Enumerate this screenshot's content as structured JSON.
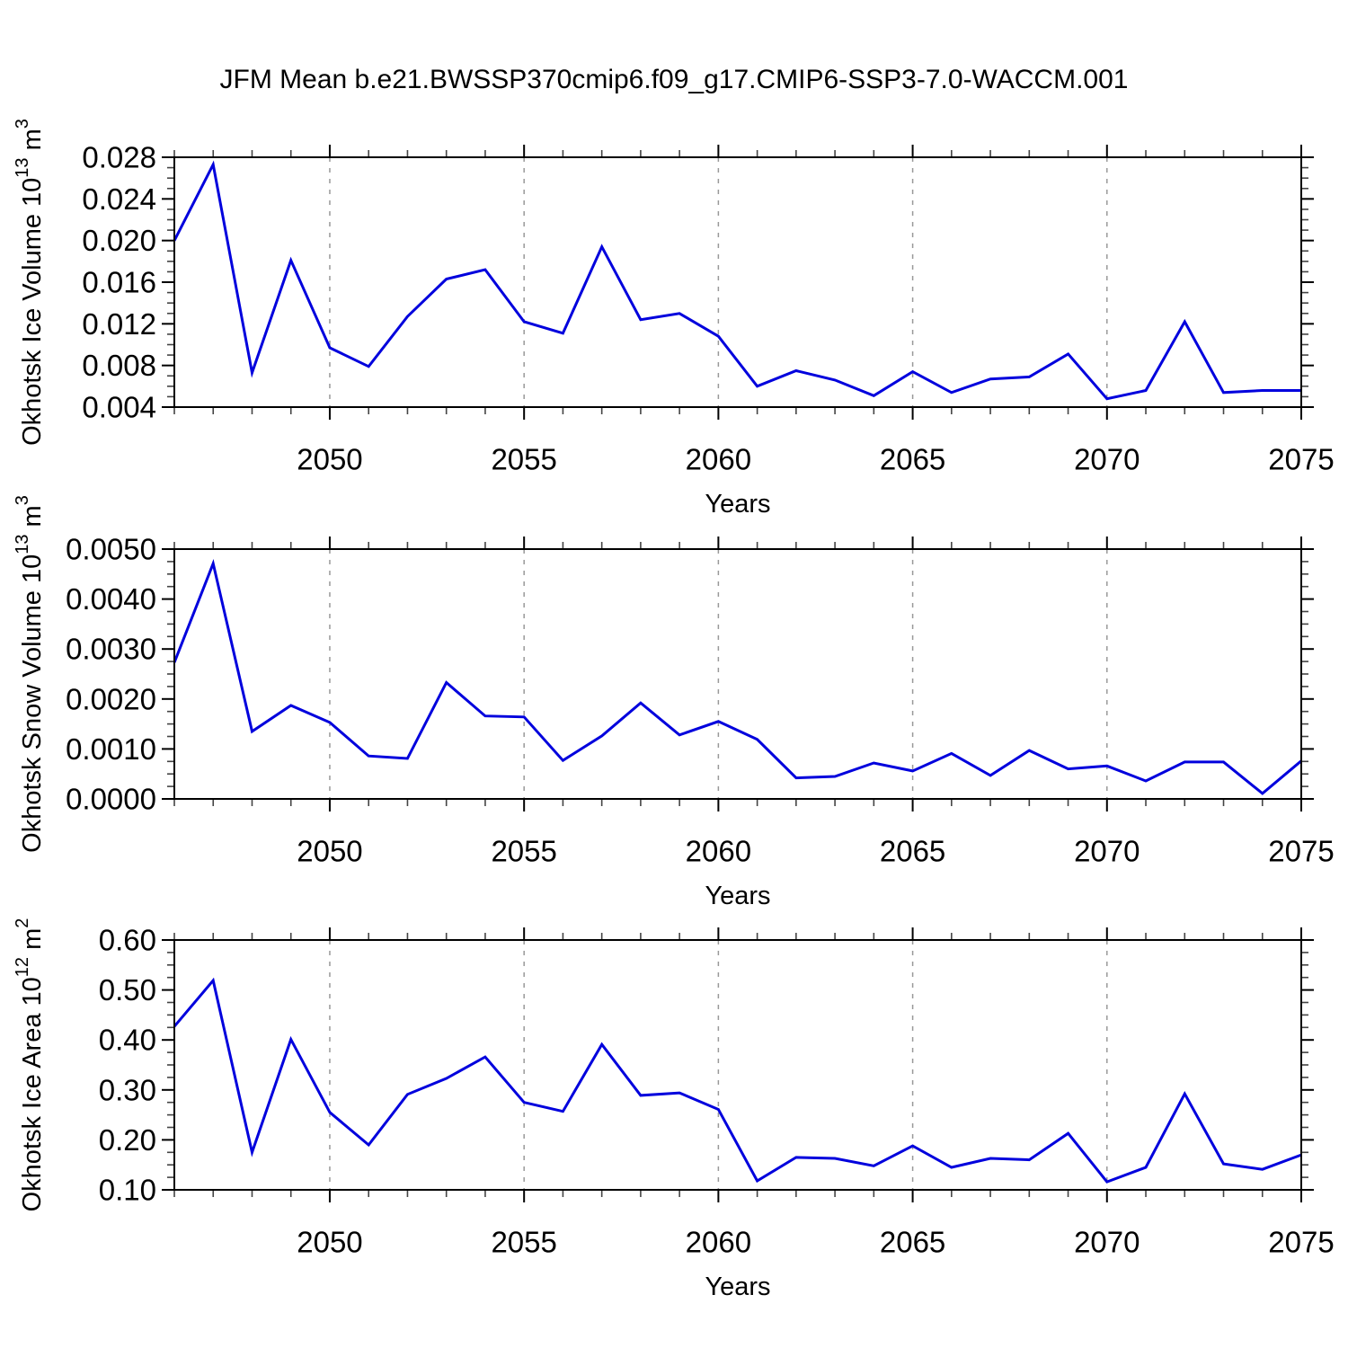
{
  "figure_title": "JFM Mean b.e21.BWSSP370cmip6.f09_g17.CMIP6-SSP3-7.0-WACCM.001",
  "style": {
    "background": "#ffffff",
    "line_color": "#0000dd",
    "axis_color": "#000000",
    "minor_tick_color": "#444444",
    "grid_color": "#999999",
    "text_color": "#000000"
  },
  "x_axis": {
    "label": "Years",
    "min": 2046,
    "max": 2075,
    "major_ticks": [
      2050,
      2055,
      2060,
      2065,
      2070,
      2075
    ],
    "minor_step": 1,
    "grid_lines": [
      2050,
      2055,
      2060,
      2065,
      2070
    ]
  },
  "chart_data": [
    {
      "type": "line",
      "name": "ice-volume",
      "title": "",
      "xlabel": "Years",
      "ylabel": "Okhotsk Ice Volume 10^13 m^3",
      "ylabel_parts": [
        {
          "t": "Okhotsk Ice Volume 10"
        },
        {
          "t": "13",
          "sup": true
        },
        {
          "t": " m"
        },
        {
          "t": "3",
          "sup": true
        }
      ],
      "ylim": [
        0.004,
        0.028
      ],
      "ytick_major_step": 0.004,
      "ytick_minor_step": 0.001,
      "ytick_decimals": 3,
      "xlim": [
        2046,
        2075
      ],
      "grid": "x-major-dashed",
      "x": [
        2046,
        2047,
        2048,
        2049,
        2050,
        2051,
        2052,
        2053,
        2054,
        2055,
        2056,
        2057,
        2058,
        2059,
        2060,
        2061,
        2062,
        2063,
        2064,
        2065,
        2066,
        2067,
        2068,
        2069,
        2070,
        2071,
        2072,
        2073,
        2074,
        2075
      ],
      "values": [
        0.02,
        0.0273,
        0.0073,
        0.0181,
        0.0097,
        0.0079,
        0.0127,
        0.0163,
        0.0172,
        0.0122,
        0.0111,
        0.0194,
        0.0124,
        0.013,
        0.0108,
        0.006,
        0.0075,
        0.0066,
        0.0051,
        0.0074,
        0.0054,
        0.0067,
        0.0069,
        0.0091,
        0.0048,
        0.0056,
        0.0122,
        0.0054,
        0.0056,
        0.0056
      ]
    },
    {
      "type": "line",
      "name": "snow-volume",
      "title": "",
      "xlabel": "Years",
      "ylabel": "Okhotsk Snow Volume 10^13 m^3",
      "ylabel_parts": [
        {
          "t": "Okhotsk Snow Volume 10"
        },
        {
          "t": "13",
          "sup": true
        },
        {
          "t": " m"
        },
        {
          "t": "3",
          "sup": true
        }
      ],
      "ylim": [
        0.0,
        0.005
      ],
      "ytick_major_step": 0.001,
      "ytick_minor_step": 0.00025,
      "ytick_decimals": 4,
      "xlim": [
        2046,
        2075
      ],
      "grid": "x-major-dashed",
      "x": [
        2046,
        2047,
        2048,
        2049,
        2050,
        2051,
        2052,
        2053,
        2054,
        2055,
        2056,
        2057,
        2058,
        2059,
        2060,
        2061,
        2062,
        2063,
        2064,
        2065,
        2066,
        2067,
        2068,
        2069,
        2070,
        2071,
        2072,
        2073,
        2074,
        2075
      ],
      "values": [
        0.00273,
        0.00471,
        0.00135,
        0.00187,
        0.00153,
        0.00086,
        0.00081,
        0.00233,
        0.00166,
        0.00164,
        0.00077,
        0.00126,
        0.00192,
        0.00128,
        0.00155,
        0.00119,
        0.00042,
        0.00045,
        0.00072,
        0.00056,
        0.00091,
        0.00047,
        0.00097,
        0.0006,
        0.00066,
        0.00036,
        0.00074,
        0.00074,
        0.00011,
        0.00076
      ]
    },
    {
      "type": "line",
      "name": "ice-area",
      "title": "",
      "xlabel": "Years",
      "ylabel": "Okhotsk Ice Area 10^12 m^2",
      "ylabel_parts": [
        {
          "t": "Okhotsk Ice Area 10"
        },
        {
          "t": "12",
          "sup": true
        },
        {
          "t": " m"
        },
        {
          "t": "2",
          "sup": true
        }
      ],
      "ylim": [
        0.1,
        0.6
      ],
      "ytick_major_step": 0.1,
      "ytick_minor_step": 0.025,
      "ytick_decimals": 2,
      "xlim": [
        2046,
        2075
      ],
      "grid": "x-major-dashed",
      "x": [
        2046,
        2047,
        2048,
        2049,
        2050,
        2051,
        2052,
        2053,
        2054,
        2055,
        2056,
        2057,
        2058,
        2059,
        2060,
        2061,
        2062,
        2063,
        2064,
        2065,
        2066,
        2067,
        2068,
        2069,
        2070,
        2071,
        2072,
        2073,
        2074,
        2075
      ],
      "values": [
        0.427,
        0.519,
        0.175,
        0.401,
        0.255,
        0.19,
        0.291,
        0.323,
        0.366,
        0.275,
        0.257,
        0.391,
        0.289,
        0.294,
        0.261,
        0.118,
        0.165,
        0.163,
        0.148,
        0.188,
        0.145,
        0.163,
        0.16,
        0.213,
        0.116,
        0.145,
        0.292,
        0.152,
        0.141,
        0.17
      ]
    }
  ]
}
